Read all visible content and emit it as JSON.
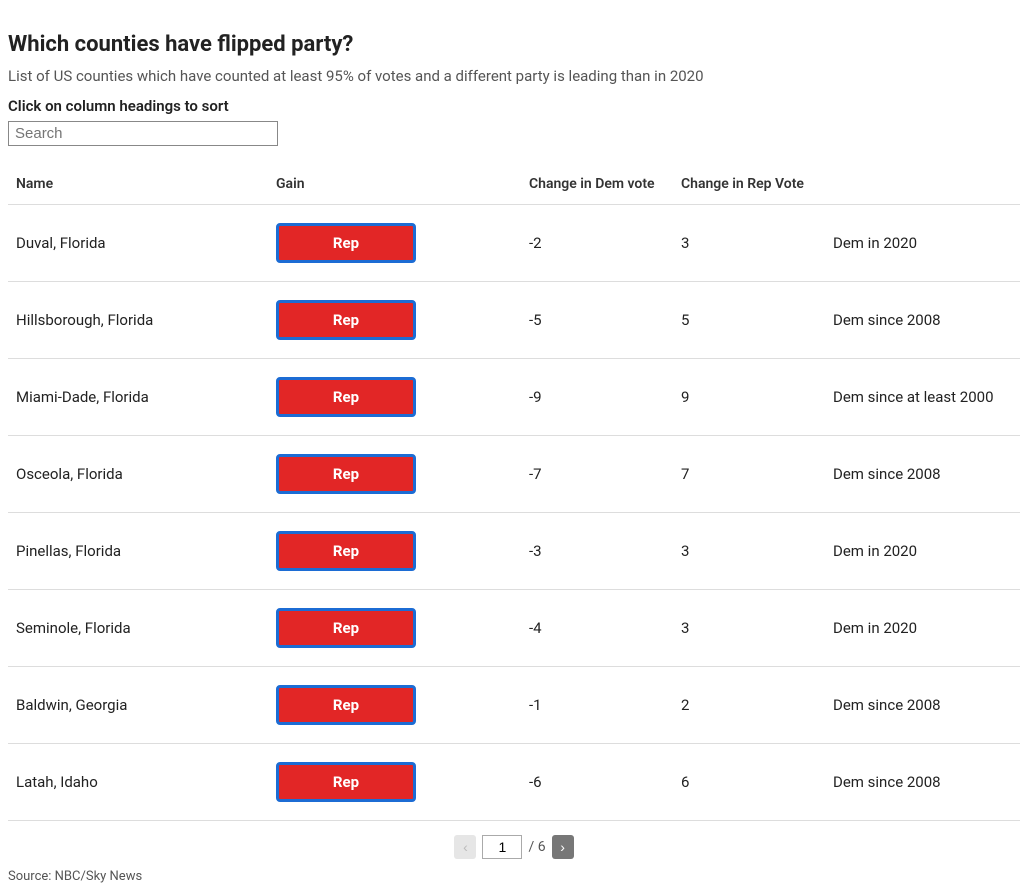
{
  "title": "Which counties have flipped party?",
  "subtitle": "List of US counties which have counted at least 95% of votes and a different party is leading than in 2020",
  "sort_hint": "Click on column headings to sort",
  "search_placeholder": "Search",
  "columns": {
    "name": "Name",
    "gain": "Gain",
    "dem_change": "Change in Dem vote",
    "rep_change": "Change in Rep Vote",
    "history": ""
  },
  "badge_style": {
    "rep_bg": "#e22626",
    "rep_border": "#1c6cd4",
    "rep_text": "#ffffff"
  },
  "rows": [
    {
      "name": "Duval, Florida",
      "gain": "Rep",
      "dem_change": "-2",
      "rep_change": "3",
      "history": "Dem in 2020"
    },
    {
      "name": "Hillsborough, Florida",
      "gain": "Rep",
      "dem_change": "-5",
      "rep_change": "5",
      "history": "Dem since 2008"
    },
    {
      "name": "Miami-Dade, Florida",
      "gain": "Rep",
      "dem_change": "-9",
      "rep_change": "9",
      "history": "Dem since at least 2000"
    },
    {
      "name": "Osceola, Florida",
      "gain": "Rep",
      "dem_change": "-7",
      "rep_change": "7",
      "history": "Dem since 2008"
    },
    {
      "name": "Pinellas, Florida",
      "gain": "Rep",
      "dem_change": "-3",
      "rep_change": "3",
      "history": "Dem in 2020"
    },
    {
      "name": "Seminole, Florida",
      "gain": "Rep",
      "dem_change": "-4",
      "rep_change": "3",
      "history": "Dem in 2020"
    },
    {
      "name": "Baldwin, Georgia",
      "gain": "Rep",
      "dem_change": "-1",
      "rep_change": "2",
      "history": "Dem since 2008"
    },
    {
      "name": "Latah, Idaho",
      "gain": "Rep",
      "dem_change": "-6",
      "rep_change": "6",
      "history": "Dem since 2008"
    }
  ],
  "pagination": {
    "prev": "‹",
    "next": "›",
    "current": "1",
    "separator": "/ ",
    "total": "6"
  },
  "source": "Source: NBC/Sky News"
}
